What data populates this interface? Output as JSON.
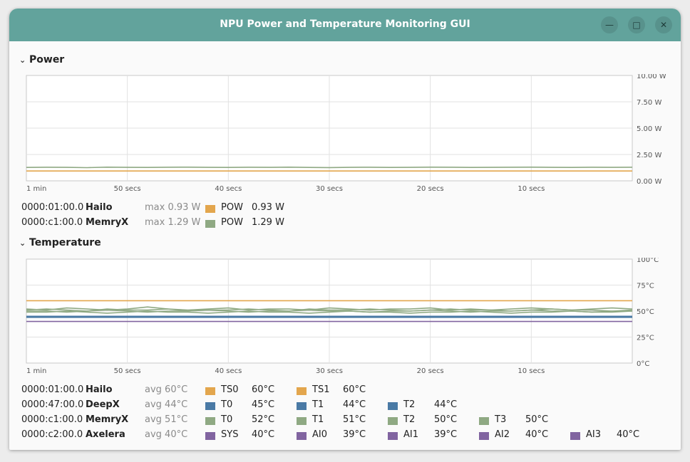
{
  "window": {
    "title": "NPU Power and Temperature Monitoring GUI"
  },
  "colors": {
    "titlebar": "#62a39c",
    "hailo": "#e3a64d",
    "deepx": "#4a7aa5",
    "memryx": "#8fa983",
    "axelera": "#8164a0"
  },
  "power": {
    "header": "Power",
    "chart_data": {
      "type": "line",
      "x_labels": [
        "1 min",
        "50 secs",
        "40 secs",
        "30 secs",
        "20 secs",
        "10 secs"
      ],
      "y_labels": [
        "10.00 W",
        "7.50 W",
        "5.00 W",
        "2.50 W",
        "0.00 W"
      ],
      "ylim": [
        0,
        10
      ],
      "xlim": [
        -60,
        0
      ],
      "grid": true,
      "series": [
        {
          "name": "Hailo POW",
          "color": "#e3a64d",
          "values": [
            0.93,
            0.93,
            0.93,
            0.93,
            0.93,
            0.93,
            0.93,
            0.93,
            0.93,
            0.93,
            0.93,
            0.93,
            0.93,
            0.93,
            0.93,
            0.93,
            0.93,
            0.93,
            0.93,
            0.93,
            0.93,
            0.93,
            0.93,
            0.93,
            0.93,
            0.93,
            0.93,
            0.93,
            0.93,
            0.93,
            0.93
          ]
        },
        {
          "name": "MemryX POW",
          "color": "#8fa983",
          "values": [
            1.27,
            1.29,
            1.28,
            1.25,
            1.3,
            1.28,
            1.27,
            1.29,
            1.3,
            1.28,
            1.27,
            1.29,
            1.28,
            1.3,
            1.27,
            1.26,
            1.28,
            1.29,
            1.27,
            1.28,
            1.3,
            1.29,
            1.27,
            1.28,
            1.29,
            1.3,
            1.28,
            1.27,
            1.29,
            1.28,
            1.29
          ]
        }
      ]
    },
    "rows": [
      {
        "id": "0000:01:00.0",
        "name": "Hailo",
        "summary": "max 0.93 W",
        "sensors": [
          {
            "label": "POW",
            "value": "0.93 W",
            "color": "#e3a64d"
          }
        ]
      },
      {
        "id": "0000:c1:00.0",
        "name": "MemryX",
        "summary": "max 1.29 W",
        "sensors": [
          {
            "label": "POW",
            "value": "1.29 W",
            "color": "#8fa983"
          }
        ]
      }
    ]
  },
  "temperature": {
    "header": "Temperature",
    "chart_data": {
      "type": "line",
      "x_labels": [
        "1 min",
        "50 secs",
        "40 secs",
        "30 secs",
        "20 secs",
        "10 secs"
      ],
      "y_labels": [
        "100°C",
        "75°C",
        "50°C",
        "25°C",
        "0°C"
      ],
      "ylim": [
        0,
        100
      ],
      "xlim": [
        -60,
        0
      ],
      "grid": true,
      "series": [
        {
          "name": "Hailo TS0",
          "color": "#e3a64d",
          "values": [
            60,
            60,
            60,
            60,
            60,
            60,
            60,
            60,
            60,
            60,
            60,
            60,
            60,
            60,
            60,
            60,
            60,
            60,
            60,
            60,
            60,
            60,
            60,
            60,
            60,
            60,
            60,
            60,
            60,
            60,
            60
          ]
        },
        {
          "name": "DeepX T0",
          "color": "#4a7aa5",
          "values": [
            45,
            45,
            45,
            45,
            45,
            45,
            45,
            45,
            45,
            45,
            45,
            45,
            45,
            45,
            45,
            45,
            45,
            45,
            45,
            45,
            45,
            45,
            45,
            45,
            45,
            45,
            45,
            45,
            45,
            45,
            45
          ]
        },
        {
          "name": "DeepX T2",
          "color": "#4a7aa5",
          "values": [
            44,
            44,
            44,
            44,
            44,
            44,
            44,
            44,
            44,
            44,
            44,
            44,
            44,
            44,
            44,
            44,
            44,
            44,
            44,
            44,
            44,
            44,
            44,
            44,
            44,
            44,
            44,
            44,
            44,
            44,
            44
          ]
        },
        {
          "name": "MemryX T0",
          "color": "#8fa983",
          "values": [
            52,
            51,
            53,
            52,
            51,
            52,
            54,
            52,
            51,
            52,
            53,
            51,
            52,
            52,
            51,
            53,
            52,
            51,
            52,
            52,
            53,
            51,
            52,
            51,
            52,
            53,
            52,
            51,
            52,
            53,
            52
          ]
        },
        {
          "name": "MemryX T1",
          "color": "#8fa983",
          "values": [
            51,
            52,
            51,
            50,
            52,
            51,
            51,
            52,
            50,
            51,
            51,
            52,
            51,
            50,
            52,
            51,
            51,
            52,
            51,
            50,
            51,
            52,
            51,
            51,
            50,
            51,
            52,
            51,
            51,
            50,
            51
          ]
        },
        {
          "name": "MemryX T2",
          "color": "#8fa983",
          "values": [
            50,
            50,
            49,
            50,
            51,
            50,
            49,
            50,
            50,
            51,
            50,
            49,
            50,
            50,
            51,
            50,
            50,
            49,
            50,
            50,
            51,
            50,
            49,
            50,
            50,
            51,
            50,
            50,
            49,
            50,
            50
          ]
        },
        {
          "name": "MemryX T3",
          "color": "#8fa983",
          "values": [
            49,
            49,
            50,
            49,
            48,
            49,
            50,
            49,
            49,
            48,
            49,
            50,
            49,
            49,
            48,
            49,
            50,
            49,
            49,
            48,
            49,
            49,
            50,
            49,
            48,
            49,
            49,
            50,
            49,
            49,
            50
          ]
        },
        {
          "name": "Axelera SYS",
          "color": "#8164a0",
          "values": [
            40,
            40,
            40,
            40,
            40,
            40,
            40,
            40,
            40,
            40,
            40,
            40,
            40,
            40,
            40,
            40,
            40,
            40,
            40,
            40,
            40,
            40,
            40,
            40,
            40,
            40,
            40,
            40,
            40,
            40,
            40
          ]
        }
      ]
    },
    "rows": [
      {
        "id": "0000:01:00.0",
        "name": "Hailo",
        "summary": "avg 60°C",
        "sensors": [
          {
            "label": "TS0",
            "value": "60°C",
            "color": "#e3a64d"
          },
          {
            "label": "TS1",
            "value": "60°C",
            "color": "#e3a64d"
          }
        ]
      },
      {
        "id": "0000:47:00.0",
        "name": "DeepX",
        "summary": "avg 44°C",
        "sensors": [
          {
            "label": "T0",
            "value": "45°C",
            "color": "#4a7aa5"
          },
          {
            "label": "T1",
            "value": "44°C",
            "color": "#4a7aa5"
          },
          {
            "label": "T2",
            "value": "44°C",
            "color": "#4a7aa5"
          }
        ]
      },
      {
        "id": "0000:c1:00.0",
        "name": "MemryX",
        "summary": "avg 51°C",
        "sensors": [
          {
            "label": "T0",
            "value": "52°C",
            "color": "#8fa983"
          },
          {
            "label": "T1",
            "value": "51°C",
            "color": "#8fa983"
          },
          {
            "label": "T2",
            "value": "50°C",
            "color": "#8fa983"
          },
          {
            "label": "T3",
            "value": "50°C",
            "color": "#8fa983"
          }
        ]
      },
      {
        "id": "0000:c2:00.0",
        "name": "Axelera",
        "summary": "avg 40°C",
        "sensors": [
          {
            "label": "SYS",
            "value": "40°C",
            "color": "#8164a0"
          },
          {
            "label": "AI0",
            "value": "39°C",
            "color": "#8164a0"
          },
          {
            "label": "AI1",
            "value": "39°C",
            "color": "#8164a0"
          },
          {
            "label": "AI2",
            "value": "40°C",
            "color": "#8164a0"
          },
          {
            "label": "AI3",
            "value": "40°C",
            "color": "#8164a0"
          }
        ]
      }
    ]
  }
}
